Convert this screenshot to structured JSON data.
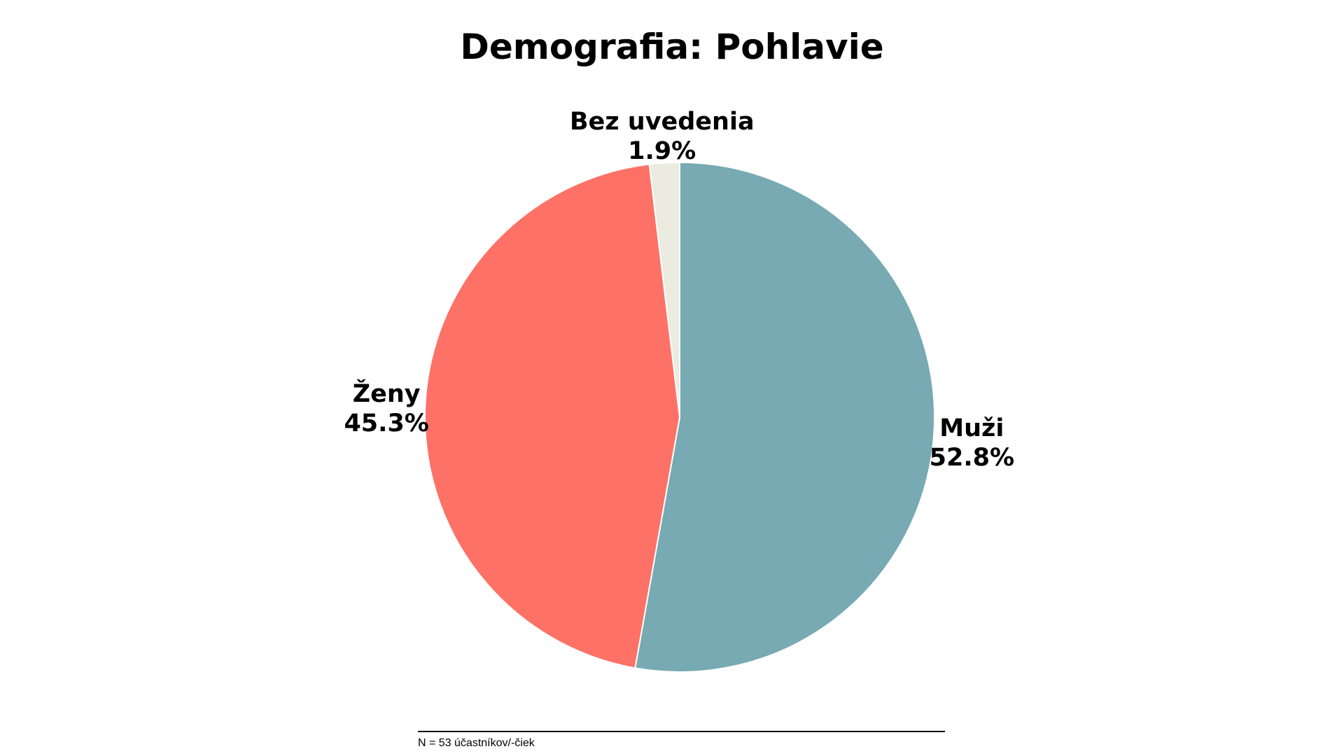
{
  "chart_data": {
    "type": "pie",
    "title": "Demografia: Pohlavie",
    "slices": [
      {
        "label": "Muži",
        "value": 52.8,
        "value_label": "52.8%",
        "color": "#77aab2"
      },
      {
        "label": "Ženy",
        "value": 45.3,
        "value_label": "45.3%",
        "color": "#fe7166"
      },
      {
        "label": "Bez uvedenia",
        "value": 1.9,
        "value_label": "1.9%",
        "color": "#ebebdf"
      }
    ],
    "start_angle": "12 o'clock",
    "direction": "clockwise",
    "legend": "none",
    "footnote": "N = 53 účastníkov/-čiek"
  }
}
